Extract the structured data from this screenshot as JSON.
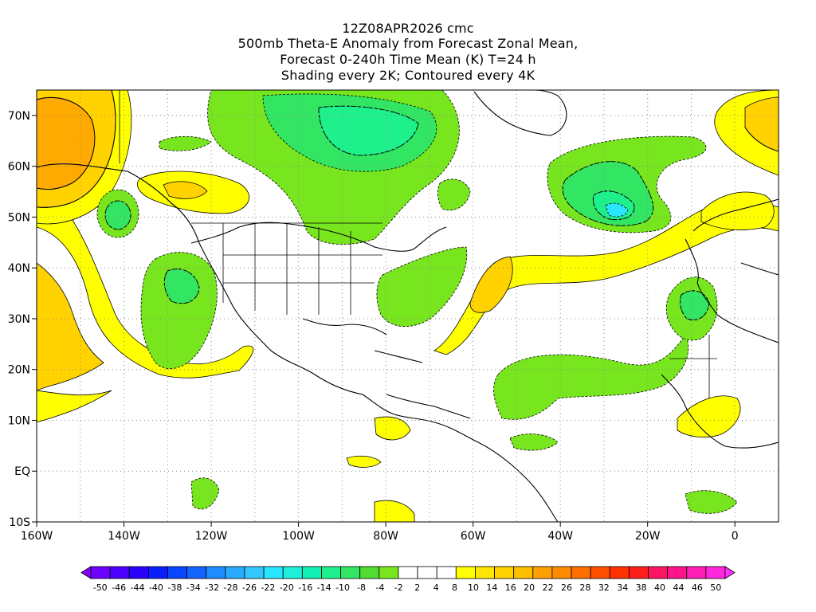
{
  "title_lines": [
    "12Z08APR2026 cmc",
    "500mb Theta-E Anomaly from Forecast Zonal Mean,",
    "Forecast 0-240h Time Mean (K) T=24 h",
    "Shading every 2K; Contoured every 4K"
  ],
  "map": {
    "lon_range": [
      -160,
      10
    ],
    "lat_range": [
      -10,
      75
    ],
    "x_tick_labels": [
      "160W",
      "140W",
      "120W",
      "100W",
      "80W",
      "60W",
      "40W",
      "20W",
      "0"
    ],
    "x_tick_values": [
      -160,
      -140,
      -120,
      -100,
      -80,
      -60,
      -40,
      -20,
      0
    ],
    "y_tick_labels": [
      "10S",
      "EQ",
      "10N",
      "20N",
      "30N",
      "40N",
      "50N",
      "60N",
      "70N"
    ],
    "y_tick_values": [
      -10,
      0,
      10,
      20,
      30,
      40,
      50,
      60,
      70
    ],
    "grid": "dotted"
  },
  "colorbar": {
    "labels": [
      "-50",
      "-46",
      "-44",
      "-40",
      "-38",
      "-34",
      "-32",
      "-28",
      "-26",
      "-22",
      "-20",
      "-16",
      "-14",
      "-10",
      "-8",
      "-4",
      "-2",
      "2",
      "4",
      "8",
      "10",
      "14",
      "16",
      "20",
      "22",
      "26",
      "28",
      "32",
      "34",
      "38",
      "40",
      "44",
      "46",
      "50"
    ],
    "colors": [
      "#8a00ff",
      "#6e00ff",
      "#4b00ff",
      "#2a00ff",
      "#0a1eff",
      "#0a46ff",
      "#1464ff",
      "#1e8cff",
      "#28aaff",
      "#32c8ff",
      "#28e6ff",
      "#1ef0dc",
      "#14f0b4",
      "#1ef08c",
      "#32e664",
      "#50dc32",
      "#78e61e",
      "#ffffff",
      "#ffffff",
      "#ffffff",
      "#ffff00",
      "#ffe600",
      "#ffd200",
      "#ffbe00",
      "#ffa000",
      "#ff8c00",
      "#ff6e00",
      "#ff5000",
      "#ff3200",
      "#ff1e1e",
      "#ff1464",
      "#ff148c",
      "#ff1eb4",
      "#ff28dc",
      "#ff32ff"
    ]
  },
  "fill_colors": {
    "pos2": "#ffff00",
    "pos4": "#ffd200",
    "pos6": "#ffaa00",
    "pos8": "#ff8c00",
    "neg2": "#78e61e",
    "neg4": "#32e664",
    "neg6": "#1ef08c",
    "neg8": "#14f0b4",
    "neg10": "#28e6ff"
  }
}
